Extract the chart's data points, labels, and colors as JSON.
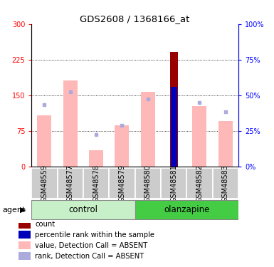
{
  "title": "GDS2608 / 1368166_at",
  "samples": [
    "GSM48559",
    "GSM48577",
    "GSM48578",
    "GSM48579",
    "GSM48580",
    "GSM48581",
    "GSM48582",
    "GSM48583"
  ],
  "pink_bar_values": [
    108,
    182,
    35,
    88,
    157,
    0,
    128,
    97
  ],
  "blue_sq_values": [
    130,
    157,
    68,
    88,
    143,
    0,
    135,
    115
  ],
  "red_bar_value": 242,
  "red_bar_index": 5,
  "blue_bar_value": 168,
  "blue_bar_index": 5,
  "ylim_left": [
    0,
    300
  ],
  "ylim_right": [
    0,
    100
  ],
  "yticks_left": [
    0,
    75,
    150,
    225,
    300
  ],
  "yticks_right": [
    0,
    25,
    50,
    75,
    100
  ],
  "ytick_labels_left": [
    "0",
    "75",
    "150",
    "225",
    "300"
  ],
  "ytick_labels_right": [
    "0%",
    "25%",
    "50%",
    "75%",
    "100%"
  ],
  "group_label_left": "control",
  "group_label_right": "olanzapine",
  "agent_label": "agent",
  "group_bg_color_light": "#c8f0c8",
  "group_bg_color_dark": "#44cc44",
  "sample_bg_color": "#cccccc",
  "pink_color": "#ffb8b8",
  "blue_sq_color": "#aaaadd",
  "red_bar_color": "#990000",
  "blue_bar_color": "#0000bb",
  "legend_items": [
    {
      "color": "#990000",
      "label": "count"
    },
    {
      "color": "#0000bb",
      "label": "percentile rank within the sample"
    },
    {
      "color": "#ffb8b8",
      "label": "value, Detection Call = ABSENT"
    },
    {
      "color": "#aaaadd",
      "label": "rank, Detection Call = ABSENT"
    }
  ]
}
